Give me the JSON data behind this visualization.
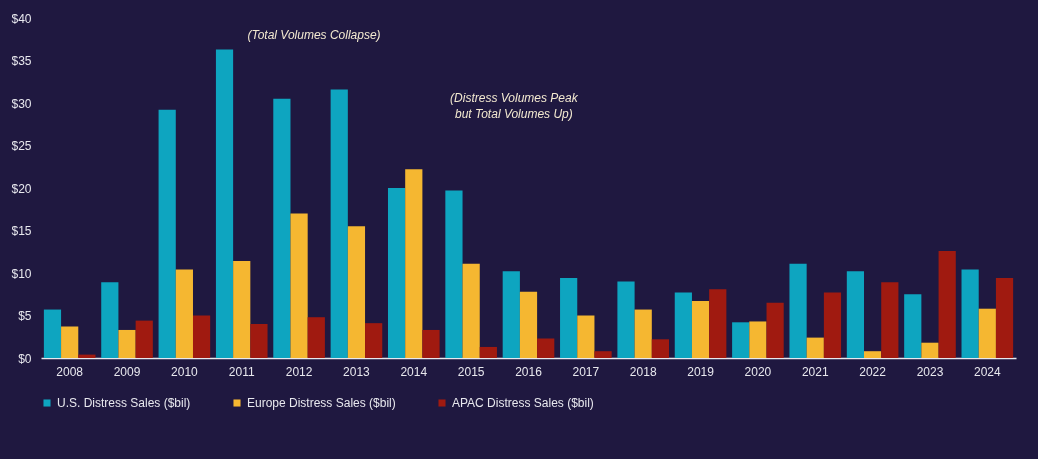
{
  "chart_data": {
    "type": "bar",
    "categories": [
      "2008",
      "2009",
      "2010",
      "2011",
      "2012",
      "2013",
      "2014",
      "2015",
      "2016",
      "2017",
      "2018",
      "2019",
      "2020",
      "2021",
      "2022",
      "2023",
      "2024"
    ],
    "series": [
      {
        "name": "U.S. Distress Sales ($bil)",
        "color": "#0ea5c0",
        "values": [
          5.7,
          8.9,
          29.2,
          36.3,
          30.5,
          31.6,
          20.0,
          19.7,
          10.2,
          9.4,
          9.0,
          7.7,
          4.2,
          11.1,
          10.2,
          7.5,
          10.4
        ]
      },
      {
        "name": "Europe Distress Sales ($bil)",
        "color": "#f5b731",
        "values": [
          3.7,
          3.3,
          10.4,
          11.4,
          17.0,
          15.5,
          22.2,
          11.1,
          7.8,
          5.0,
          5.7,
          6.7,
          4.3,
          2.4,
          0.8,
          1.8,
          5.8
        ]
      },
      {
        "name": "APAC Distress Sales ($bil)",
        "color": "#a01a10",
        "values": [
          0.4,
          4.4,
          5.0,
          4.0,
          4.8,
          4.1,
          3.3,
          1.3,
          2.3,
          0.8,
          2.2,
          8.1,
          6.5,
          7.7,
          8.9,
          12.6,
          9.4
        ]
      }
    ],
    "ylim": [
      0,
      40
    ],
    "yticks": [
      {
        "value": 0,
        "label": "$0"
      },
      {
        "value": 5,
        "label": "$5"
      },
      {
        "value": 10,
        "label": "$10"
      },
      {
        "value": 15,
        "label": "$15"
      },
      {
        "value": 20,
        "label": "$20"
      },
      {
        "value": 25,
        "label": "$25"
      },
      {
        "value": 30,
        "label": "$30"
      },
      {
        "value": 35,
        "label": "$35"
      },
      {
        "value": 40,
        "label": "$40"
      }
    ],
    "grid": false,
    "legend": "bottom",
    "annotations": [
      "(Total Volumes Collapse)",
      "(Distress Volumes Peak\nbut Total Volumes Up)"
    ]
  }
}
